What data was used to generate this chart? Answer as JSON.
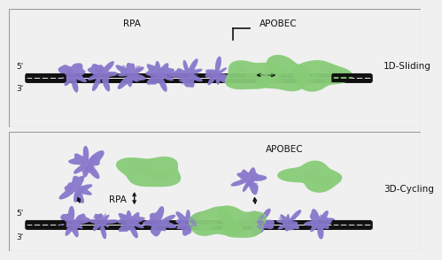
{
  "bg_color": "#f0f0f0",
  "panel_bg": "#ffffff",
  "border_color": "#999999",
  "dna_color": "#111111",
  "rpa_color": "#8878cc",
  "apobec_color": "#88cc78",
  "text_color": "#111111",
  "label_1d": "1D-Sliding",
  "label_3d": "3D-Cycling",
  "label_rpa": "RPA",
  "label_apobec": "APOBEC",
  "label_5prime": "5'",
  "label_3prime": "3'",
  "fontsize": 6.5,
  "label_fontsize": 7.5
}
